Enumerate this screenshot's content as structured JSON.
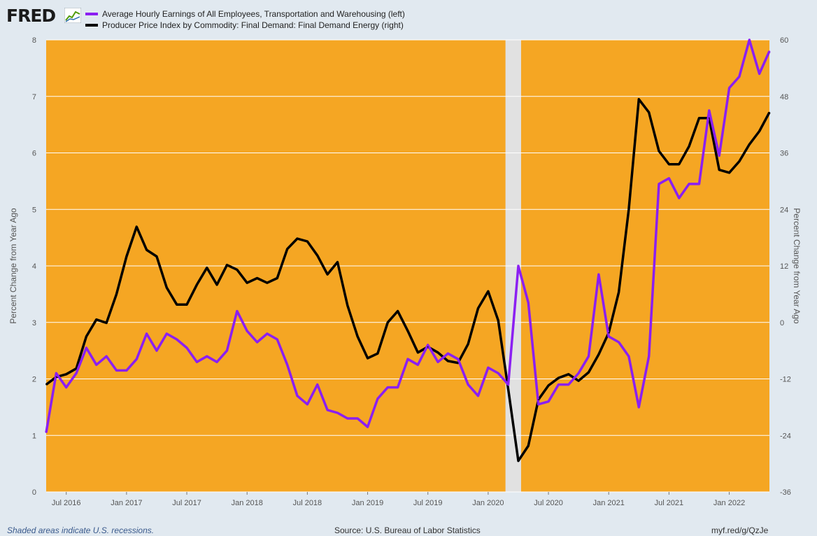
{
  "header": {
    "logo_text": "FRED",
    "legend": [
      {
        "label": "Average Hourly Earnings of All Employees, Transportation and Warehousing (left)",
        "color": "#8b1ff2"
      },
      {
        "label": "Producer Price Index by Commodity: Final Demand: Final Demand Energy (right)",
        "color": "#000000"
      }
    ]
  },
  "footer": {
    "note": "Shaded areas indicate U.S. recessions.",
    "source": "Source: U.S. Bureau of Labor Statistics",
    "link": "myf.red/g/QzJe"
  },
  "colors": {
    "background": "#e1e9f0",
    "plot_background": "#f5a623",
    "recession": "#e1e1e1",
    "series_left": "#8b1ff2",
    "series_right": "#000000"
  },
  "chart_data": {
    "type": "line",
    "ylabel_left": "Percent Change from Year Ago",
    "ylabel_right": "Percent Change from Year Ago",
    "ylim_left": [
      0,
      8
    ],
    "ylim_right": [
      -36,
      60
    ],
    "yticks_left": [
      "0",
      "1",
      "2",
      "3",
      "4",
      "5",
      "6",
      "7",
      "8"
    ],
    "yticks_right": [
      "-36",
      "-24",
      "-12",
      "0",
      "12",
      "24",
      "36",
      "48",
      "60"
    ],
    "xlim": [
      "2016-05",
      "2022-05"
    ],
    "xticks": [
      "Jul 2016",
      "Jan 2017",
      "Jul 2017",
      "Jan 2018",
      "Jul 2018",
      "Jan 2019",
      "Jul 2019",
      "Jan 2020",
      "Jul 2020",
      "Jan 2021",
      "Jul 2021",
      "Jan 2022"
    ],
    "grid": true,
    "recession": {
      "start": "2020-03",
      "end": "2020-04"
    },
    "series": [
      {
        "name": "Average Hourly Earnings of All Employees, Transportation and Warehousing (left)",
        "axis": "left",
        "start": "2016-05",
        "values": [
          1.05,
          2.1,
          1.85,
          2.1,
          2.55,
          2.25,
          2.4,
          2.15,
          2.15,
          2.35,
          2.8,
          2.5,
          2.8,
          2.7,
          2.55,
          2.3,
          2.4,
          2.3,
          2.5,
          3.2,
          2.85,
          2.65,
          2.8,
          2.7,
          2.25,
          1.7,
          1.55,
          1.9,
          1.45,
          1.4,
          1.3,
          1.3,
          1.15,
          1.65,
          1.85,
          1.85,
          2.35,
          2.25,
          2.6,
          2.3,
          2.45,
          2.35,
          1.9,
          1.7,
          2.2,
          2.1,
          1.9,
          4.0,
          3.35,
          1.55,
          1.6,
          1.9,
          1.9,
          2.1,
          2.4,
          3.85,
          2.75,
          2.65,
          2.4,
          1.5,
          2.4,
          5.45,
          5.55,
          5.2,
          5.45,
          5.45,
          6.75,
          5.95,
          7.15,
          7.35,
          8.0,
          7.4,
          7.8
        ]
      },
      {
        "name": "Producer Price Index by Commodity: Final Demand: Final Demand Energy (right)",
        "axis": "right",
        "start": "2016-05",
        "values": [
          -13.2,
          -11.6,
          -11,
          -9.8,
          -3,
          0.6,
          -0.1,
          6,
          14,
          20.3,
          15.4,
          14,
          7.4,
          3.8,
          3.8,
          8,
          11.6,
          8,
          12.2,
          11.2,
          8.4,
          9.4,
          8.4,
          9.4,
          15.6,
          17.8,
          17.2,
          14.2,
          10.2,
          12.8,
          3.6,
          -3,
          -7.6,
          -6.6,
          0,
          2.4,
          -1.8,
          -6.4,
          -5.2,
          -6.4,
          -8.2,
          -8.6,
          -4.6,
          3,
          6.6,
          0.4,
          -14.2,
          -29.4,
          -26.2,
          -16.4,
          -13.4,
          -11.8,
          -11,
          -12.4,
          -10.6,
          -6.8,
          -2.2,
          6.4,
          24,
          47.4,
          44.6,
          36.4,
          33.6,
          33.6,
          37.4,
          43.4,
          43.4,
          32.4,
          31.8,
          34.2,
          37.8,
          40.6,
          44.6
        ]
      }
    ]
  }
}
